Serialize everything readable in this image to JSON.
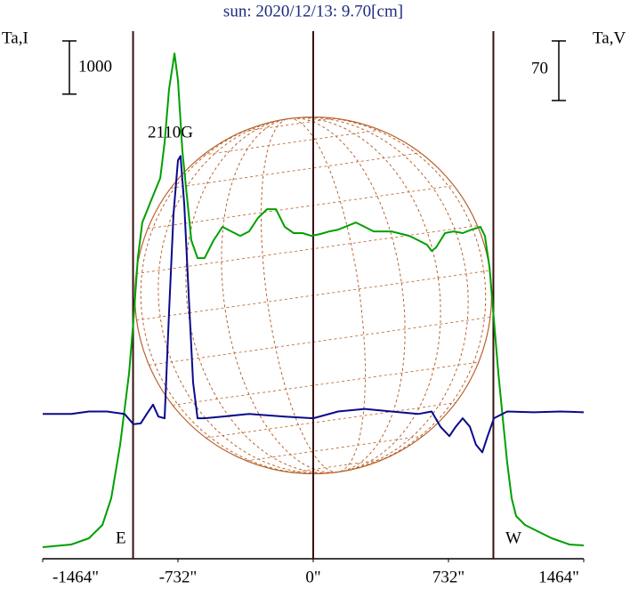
{
  "chart_data": {
    "type": "line",
    "title": "sun: 2020/12/13: 9.70[cm]",
    "y_label": "Ta,I",
    "y2_label": "Ta,V",
    "annotation": "2110G",
    "east_label": "E",
    "west_label": "W",
    "scale_bar_y": 1000,
    "scale_bar_y2": 70,
    "xlim": [
      -1464,
      1464
    ],
    "xticks": [
      {
        "value": -1464,
        "label": "-1464\""
      },
      {
        "value": -732,
        "label": "-732\""
      },
      {
        "value": 0,
        "label": "0\""
      },
      {
        "value": 732,
        "label": "732\""
      },
      {
        "value": 1464,
        "label": "1464\""
      }
    ],
    "vertical_lines": [
      -975,
      0,
      975
    ],
    "ylim": [
      0,
      10000
    ],
    "y2lim": [
      -175,
      450
    ],
    "series": [
      {
        "color": "#00a000",
        "x": [
          -1464,
          -1310,
          -1214,
          -1141,
          -1093,
          -1045,
          -997,
          -973,
          -949,
          -925,
          -877,
          -828,
          -804,
          -780,
          -751,
          -732,
          -708,
          -684,
          -660,
          -626,
          -588,
          -539,
          -491,
          -443,
          -395,
          -347,
          -299,
          -250,
          -202,
          -154,
          -106,
          -58,
          -10,
          39,
          87,
          135,
          231,
          279,
          327,
          424,
          520,
          568,
          616,
          641,
          665,
          713,
          761,
          809,
          857,
          905,
          929,
          954,
          978,
          1002,
          1026,
          1050,
          1074,
          1098,
          1146,
          1194,
          1291,
          1387,
          1464
        ],
        "values": [
          217,
          268,
          385,
          635,
          1137,
          2140,
          3478,
          4481,
          5651,
          6320,
          6738,
          7156,
          7825,
          8828,
          9497,
          8995,
          7658,
          6822,
          5986,
          5651,
          5651,
          5986,
          6237,
          6153,
          6069,
          6153,
          6404,
          6571,
          6571,
          6237,
          6120,
          6120,
          6069,
          6103,
          6153,
          6186,
          6320,
          6237,
          6153,
          6153,
          6069,
          5986,
          5902,
          5785,
          5852,
          6120,
          6153,
          6120,
          6186,
          6237,
          6069,
          5484,
          4481,
          3478,
          2642,
          1806,
          1137,
          803,
          635,
          552,
          385,
          268,
          251
        ]
      },
      {
        "color": "#0a0a8c",
        "axis": "y2",
        "x": [
          -1464,
          -1310,
          -1214,
          -1117,
          -1021,
          -973,
          -934,
          -901,
          -867,
          -838,
          -804,
          -780,
          -756,
          -732,
          -718,
          -698,
          -674,
          -650,
          -626,
          -588,
          -491,
          -347,
          -154,
          0,
          135,
          279,
          424,
          568,
          641,
          689,
          737,
          771,
          809,
          848,
          881,
          915,
          944,
          978,
          1050,
          1194,
          1339,
          1464
        ],
        "values": [
          -5,
          -5,
          -2,
          -2,
          -5,
          -17,
          -16,
          -5,
          6,
          -8,
          -10,
          115,
          230,
          293,
          298,
          241,
          136,
          32,
          -10,
          -10,
          -8,
          -5,
          -8,
          -10,
          -2,
          1,
          -2,
          -5,
          -2,
          -20,
          -31,
          -20,
          -10,
          -20,
          -41,
          -50,
          -31,
          -10,
          -2,
          -3,
          -2,
          -3
        ]
      }
    ]
  }
}
